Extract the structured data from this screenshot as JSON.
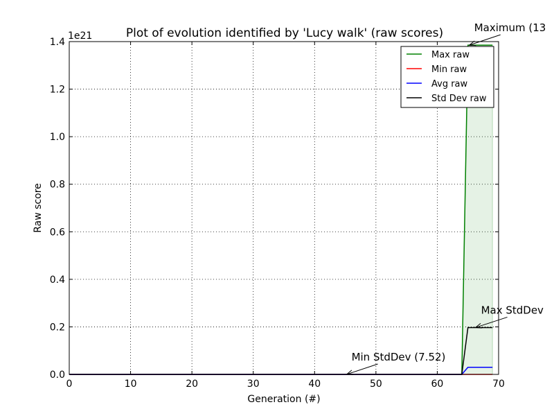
{
  "chart_data": {
    "type": "line",
    "title": "Plot of evolution identified by 'Lucy walk' (raw scores)",
    "xlabel": "Generation (#)",
    "ylabel": "Raw score",
    "y_multiplier_label": "1e21",
    "xlim": [
      0,
      70
    ],
    "ylim": [
      0,
      1.4
    ],
    "y_scale_factor": 1e+21,
    "grid": true,
    "legend_placement": "top-right",
    "x_ticks": [
      "0",
      "10",
      "20",
      "30",
      "40",
      "50",
      "60",
      "70"
    ],
    "y_ticks": [
      "0.0",
      "0.2",
      "0.4",
      "0.6",
      "0.8",
      "1.0",
      "1.2",
      "1.4"
    ],
    "series": [
      {
        "name": "Max raw",
        "color": "#008000",
        "x": [
          0,
          64,
          65,
          69
        ],
        "y": [
          0,
          0,
          1.385,
          1.385
        ]
      },
      {
        "name": "Min raw",
        "color": "#ff0000",
        "x": [
          0,
          69
        ],
        "y": [
          0,
          0
        ]
      },
      {
        "name": "Avg raw",
        "color": "#0000ff",
        "x": [
          0,
          64,
          65,
          69
        ],
        "y": [
          0,
          0,
          0.03,
          0.03
        ]
      },
      {
        "name": "Std Dev raw",
        "color": "#000000",
        "x": [
          0,
          64,
          65,
          69
        ],
        "y": [
          0,
          0,
          0.197,
          0.197
        ]
      }
    ],
    "fill_between": {
      "color": "#008000",
      "x": [
        0,
        64,
        65,
        69
      ],
      "upper": [
        0,
        0,
        1.385,
        1.385
      ],
      "lower": [
        0,
        0,
        0,
        0
      ]
    },
    "annotations": [
      {
        "text": "Maximum (13",
        "x": 65,
        "y": 1.385
      },
      {
        "text": "Max StdDev",
        "x": 66,
        "y": 0.197
      },
      {
        "text": "Min StdDev (7.52)",
        "x": 45,
        "y": 0
      }
    ]
  }
}
